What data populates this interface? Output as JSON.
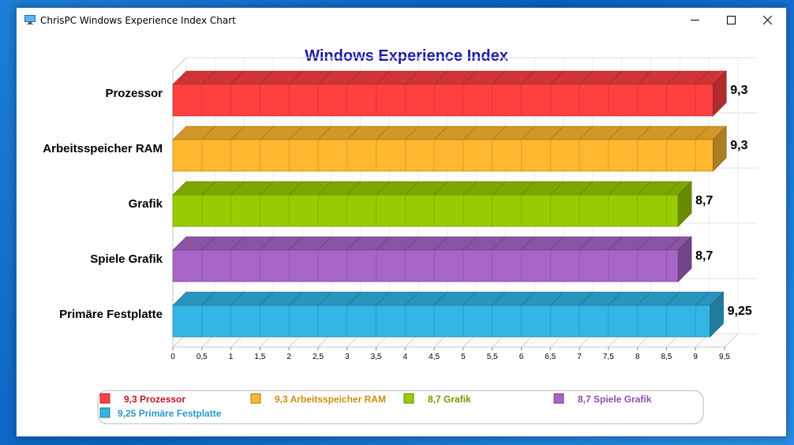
{
  "window": {
    "title": "ChrisPC Windows Experience Index Chart"
  },
  "chart_data": {
    "type": "bar",
    "orientation": "horizontal",
    "title": "Windows Experience Index",
    "categories": [
      "Prozessor",
      "Arbeitsspeicher RAM",
      "Grafik",
      "Spiele Grafik",
      "Primäre Festplatte"
    ],
    "values": [
      9.3,
      9.3,
      8.7,
      8.7,
      9.25
    ],
    "value_labels": [
      "9,3",
      "9,3",
      "8,7",
      "8,7",
      "9,25"
    ],
    "colors": [
      "#ff4040",
      "#ffb830",
      "#99cc00",
      "#a865c8",
      "#33b5e5"
    ],
    "xlim": [
      0,
      9.5
    ],
    "x_ticks": [
      "0",
      "0,5",
      "1",
      "1,5",
      "2",
      "2,5",
      "3",
      "3,5",
      "4",
      "4,5",
      "5",
      "5,5",
      "6",
      "6,5",
      "7",
      "7,5",
      "8",
      "8,5",
      "9",
      "9,5"
    ],
    "grid": true,
    "style": "3d",
    "legend": {
      "position": "bottom",
      "entries": [
        "9,3 Prozessor",
        "9,3 Arbeitsspeicher RAM",
        "8,7 Grafik",
        "8,7 Spiele Grafik",
        "9,25 Primäre Festplatte"
      ],
      "text_colors": [
        "#c0141c",
        "#d08a10",
        "#6e9a00",
        "#8c4fb0",
        "#2898c8"
      ]
    }
  }
}
